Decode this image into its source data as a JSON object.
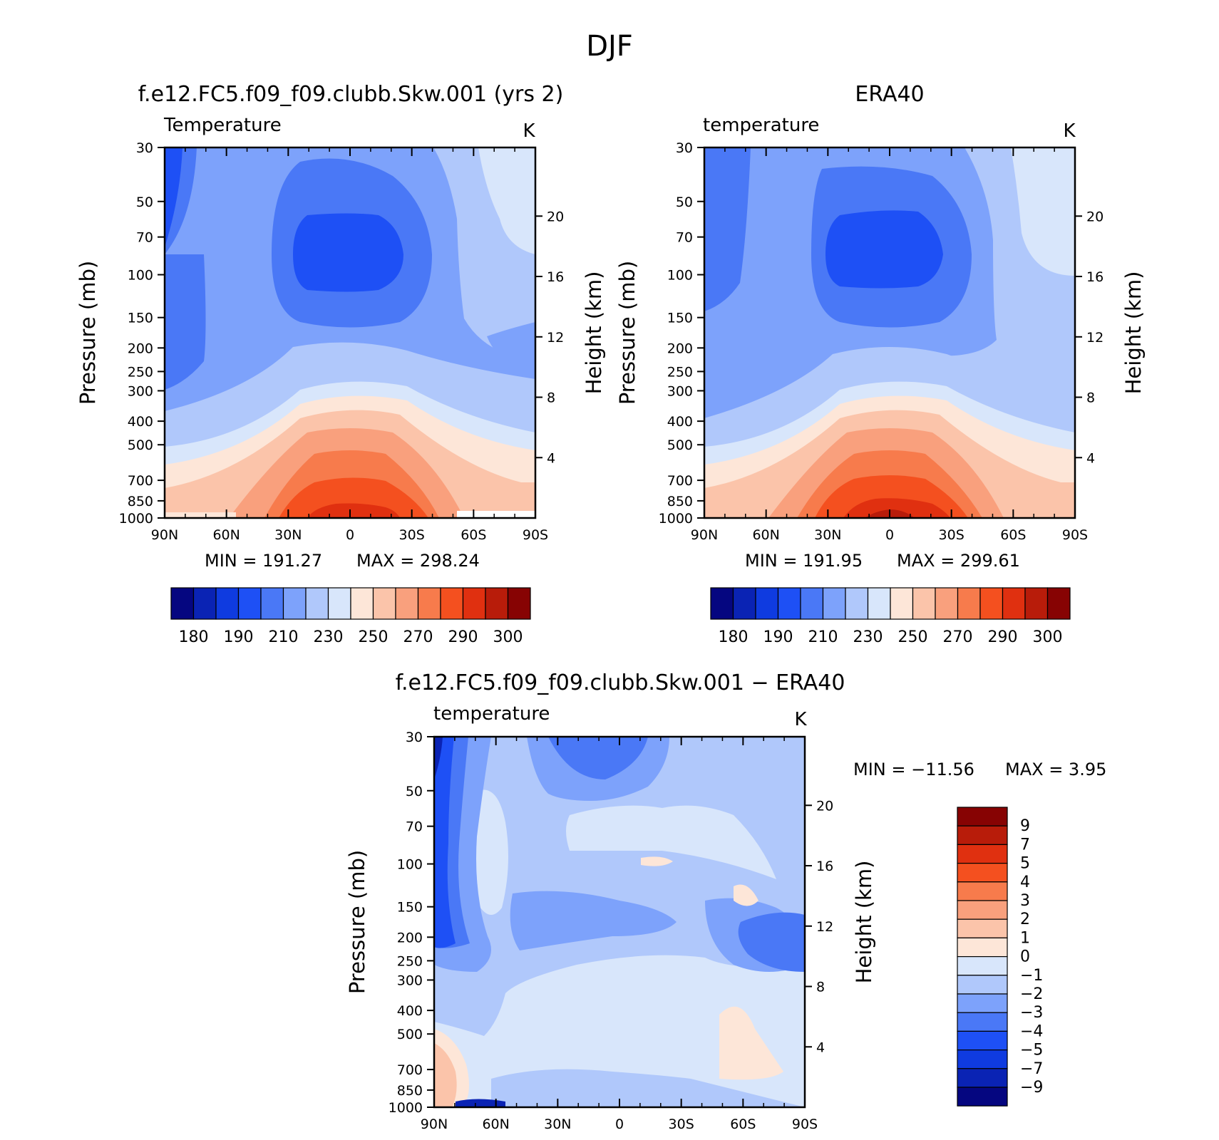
{
  "figure": {
    "title": "DJF",
    "diff_title": "f.e12.FC5.f09_f09.clubb.Skw.001 − ERA40"
  },
  "chart_data": [
    {
      "type": "heatmap",
      "id": "model",
      "title": "f.e12.FC5.f09_f09.clubb.Skw.001 (yrs 2)",
      "variable": "Temperature",
      "units": "K",
      "xlabel": "",
      "ylabel": "Pressure (mb)",
      "ylabel_right": "Height (km)",
      "x_ticks": [
        "90N",
        "60N",
        "30N",
        "0",
        "30S",
        "60S",
        "90S"
      ],
      "y_ticks": [
        "30",
        "50",
        "70",
        "100",
        "150",
        "200",
        "250",
        "300",
        "400",
        "500",
        "700",
        "850",
        "1000"
      ],
      "height_ticks": [
        "20",
        "16",
        "12",
        "8",
        "4"
      ],
      "min_label": "MIN = 191.27",
      "max_label": "MAX = 298.24",
      "min": 191.27,
      "max": 298.24,
      "colorbar_labels": [
        "180",
        "190",
        "210",
        "230",
        "250",
        "270",
        "290",
        "300"
      ]
    },
    {
      "type": "heatmap",
      "id": "obs",
      "title": "ERA40",
      "variable": "temperature",
      "units": "K",
      "xlabel": "",
      "ylabel": "Pressure (mb)",
      "ylabel_right": "Height (km)",
      "x_ticks": [
        "90N",
        "60N",
        "30N",
        "0",
        "30S",
        "60S",
        "90S"
      ],
      "y_ticks": [
        "30",
        "50",
        "70",
        "100",
        "150",
        "200",
        "250",
        "300",
        "400",
        "500",
        "700",
        "850",
        "1000"
      ],
      "height_ticks": [
        "20",
        "16",
        "12",
        "8",
        "4"
      ],
      "min_label": "MIN = 191.95",
      "max_label": "MAX = 299.61",
      "min": 191.95,
      "max": 299.61,
      "colorbar_labels": [
        "180",
        "190",
        "210",
        "230",
        "250",
        "270",
        "290",
        "300"
      ]
    },
    {
      "type": "heatmap",
      "id": "diff",
      "title": "f.e12.FC5.f09_f09.clubb.Skw.001 − ERA40",
      "variable": "temperature",
      "units": "K",
      "xlabel": "",
      "ylabel": "Pressure (mb)",
      "ylabel_right": "Height (km)",
      "x_ticks": [
        "90N",
        "60N",
        "30N",
        "0",
        "30S",
        "60S",
        "90S"
      ],
      "y_ticks": [
        "30",
        "50",
        "70",
        "100",
        "150",
        "200",
        "250",
        "300",
        "400",
        "500",
        "700",
        "850",
        "1000"
      ],
      "height_ticks": [
        "20",
        "16",
        "12",
        "8",
        "4"
      ],
      "min_label": "MIN = −11.56",
      "max_label": "MAX =    3.95",
      "min": -11.56,
      "max": 3.95,
      "colorbar_labels": [
        "9",
        "7",
        "5",
        "4",
        "3",
        "2",
        "1",
        "0",
        "−1",
        "−2",
        "−3",
        "−4",
        "−5",
        "−7",
        "−9"
      ]
    }
  ],
  "colors": {
    "abs_scale": [
      "#050680",
      "#0a23b4",
      "#0f3be0",
      "#1e50f5",
      "#4a78f6",
      "#7da2fb",
      "#b0c8fb",
      "#d8e6fb",
      "#fde6d8",
      "#fbc4aa",
      "#f9a07d",
      "#f77b4c",
      "#f4501f",
      "#e03010",
      "#b81c0a",
      "#870303"
    ],
    "diff_scale": [
      "#870303",
      "#b81c0a",
      "#e03010",
      "#f4501f",
      "#f77b4c",
      "#f9a07d",
      "#fbc4aa",
      "#fde6d8",
      "#d8e6fb",
      "#b0c8fb",
      "#7da2fb",
      "#4a78f6",
      "#1e50f5",
      "#0f3be0",
      "#0a23b4",
      "#050680"
    ]
  }
}
